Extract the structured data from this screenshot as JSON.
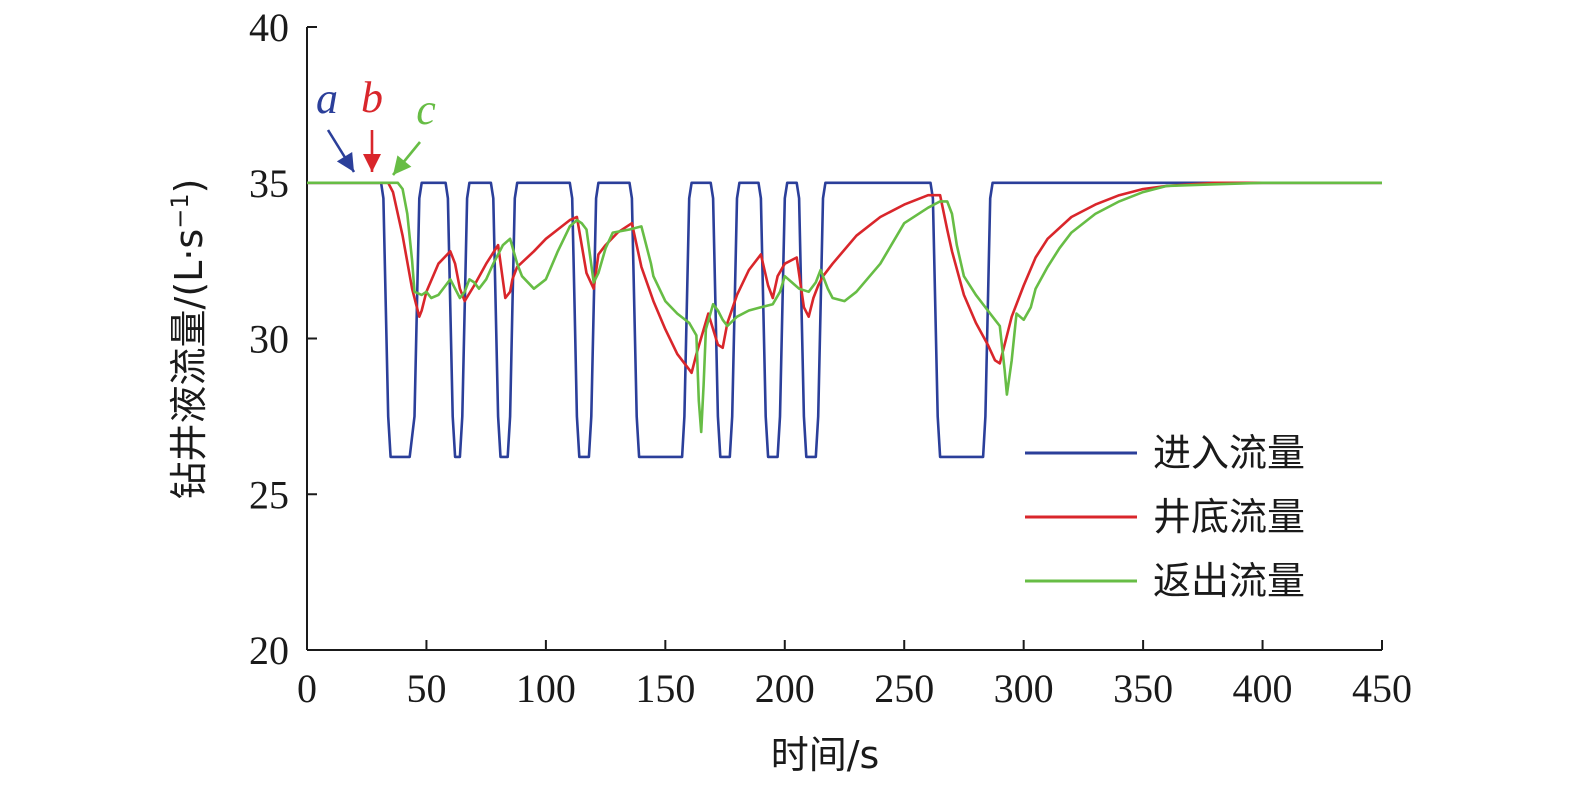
{
  "chart_data": {
    "type": "line",
    "xlabel": "时间/s",
    "ylabel": "钻井液流量/(L·s",
    "ylabel_sup": "−1",
    "ylabel_close": ")",
    "xlim": [
      0,
      450
    ],
    "ylim": [
      20,
      40
    ],
    "xticks": [
      0,
      50,
      100,
      150,
      200,
      250,
      300,
      350,
      400,
      450
    ],
    "yticks": [
      20,
      25,
      30,
      35,
      40
    ],
    "legend_position": "right",
    "series": [
      {
        "name": "进入流量",
        "color": "#2b3f9a",
        "x": [
          0,
          31,
          32,
          33,
          34,
          35,
          43,
          45,
          46,
          47,
          48,
          58,
          59,
          60,
          61,
          62,
          64,
          65,
          66,
          67,
          68,
          77,
          78,
          79,
          80,
          81,
          84,
          85,
          86,
          87,
          88,
          110,
          111,
          112,
          113,
          114,
          118,
          119,
          120,
          121,
          122,
          135,
          136,
          137,
          138,
          139,
          157,
          158,
          159,
          160,
          161,
          169,
          170,
          171,
          172,
          173,
          177,
          178,
          179,
          180,
          181,
          189,
          190,
          191,
          192,
          193,
          197,
          198,
          199,
          200,
          201,
          205,
          206,
          207,
          208,
          209,
          213,
          214,
          215,
          216,
          217,
          261,
          262,
          263,
          264,
          265,
          283,
          284,
          285,
          286,
          287,
          450
        ],
        "y": [
          35,
          35,
          34.5,
          31,
          27.5,
          26.2,
          26.2,
          27.5,
          31,
          34.5,
          35,
          35,
          34.5,
          31,
          27.5,
          26.2,
          26.2,
          27.5,
          31,
          34.5,
          35,
          35,
          34.5,
          31,
          27.5,
          26.2,
          26.2,
          27.5,
          31,
          34.5,
          35,
          35,
          34.5,
          31,
          27.5,
          26.2,
          26.2,
          27.5,
          31,
          34.5,
          35,
          35,
          34.5,
          31,
          27.5,
          26.2,
          26.2,
          27.5,
          31,
          34.5,
          35,
          35,
          34.5,
          31,
          27.5,
          26.2,
          26.2,
          27.5,
          31,
          34.5,
          35,
          35,
          34.5,
          31,
          27.5,
          26.2,
          26.2,
          27.5,
          31,
          34.5,
          35,
          35,
          34.5,
          31,
          27.5,
          26.2,
          26.2,
          27.5,
          31,
          34.5,
          35,
          35,
          34.5,
          31,
          27.5,
          26.2,
          26.2,
          27.5,
          31,
          34.5,
          35,
          35
        ]
      },
      {
        "name": "井底流量",
        "color": "#d9262b",
        "x": [
          0,
          34,
          36,
          40,
          44,
          47,
          48,
          50,
          55,
          60,
          62,
          64,
          66,
          70,
          75,
          80,
          83,
          85,
          86,
          88,
          95,
          100,
          105,
          110,
          113,
          115,
          117,
          120,
          122,
          125,
          130,
          136,
          140,
          145,
          150,
          155,
          160,
          161,
          163,
          168,
          172,
          174,
          176,
          180,
          185,
          190,
          193,
          195,
          197,
          200,
          205,
          208,
          210,
          212,
          214,
          216,
          220,
          230,
          240,
          250,
          260,
          265,
          268,
          270,
          275,
          280,
          285,
          288,
          290,
          292,
          295,
          300,
          305,
          310,
          320,
          330,
          340,
          350,
          360,
          380,
          400,
          420,
          450
        ],
        "y": [
          35,
          35,
          34.7,
          33.3,
          31.6,
          30.7,
          30.9,
          31.5,
          32.4,
          32.8,
          32.4,
          31.6,
          31.2,
          31.7,
          32.4,
          33.0,
          31.3,
          31.5,
          31.9,
          32.3,
          32.8,
          33.2,
          33.5,
          33.8,
          33.9,
          33.0,
          32.1,
          31.6,
          32.7,
          33.0,
          33.4,
          33.7,
          32.3,
          31.2,
          30.3,
          29.5,
          29.0,
          28.9,
          29.5,
          30.8,
          29.8,
          29.7,
          30.5,
          31.4,
          32.2,
          32.7,
          31.7,
          31.3,
          32.0,
          32.4,
          32.6,
          31.0,
          30.7,
          31.3,
          31.7,
          32.0,
          32.4,
          33.3,
          33.9,
          34.3,
          34.6,
          34.6,
          33.5,
          32.8,
          31.4,
          30.5,
          29.8,
          29.3,
          29.2,
          29.8,
          30.7,
          31.7,
          32.6,
          33.2,
          33.9,
          34.3,
          34.6,
          34.8,
          34.9,
          35.0,
          35.0,
          35.0,
          35.0
        ]
      },
      {
        "name": "返出流量",
        "color": "#67bd45",
        "x": [
          0,
          38,
          40,
          42,
          44,
          45,
          48,
          50,
          52,
          55,
          58,
          60,
          62,
          64,
          66,
          68,
          70,
          72,
          75,
          78,
          82,
          85,
          88,
          90,
          95,
          100,
          105,
          110,
          113,
          115,
          117,
          120,
          122,
          125,
          128,
          135,
          140,
          144,
          145,
          150,
          155,
          160,
          163,
          164,
          165,
          166,
          167,
          170,
          172,
          174,
          176,
          180,
          185,
          190,
          195,
          198,
          200,
          203,
          206,
          210,
          213,
          215,
          218,
          220,
          225,
          230,
          240,
          250,
          260,
          265,
          268,
          270,
          272,
          275,
          280,
          285,
          288,
          290,
          292,
          293,
          295,
          297,
          300,
          303,
          305,
          310,
          315,
          320,
          330,
          340,
          350,
          360,
          380,
          400,
          420,
          450
        ],
        "y": [
          35,
          35,
          34.8,
          34.0,
          32.5,
          31.5,
          31.4,
          31.5,
          31.3,
          31.4,
          31.7,
          31.9,
          31.6,
          31.3,
          31.5,
          31.9,
          31.8,
          31.6,
          31.9,
          32.4,
          33.0,
          33.2,
          32.4,
          32.0,
          31.6,
          31.9,
          32.8,
          33.6,
          33.8,
          33.7,
          33.5,
          31.8,
          32.1,
          32.9,
          33.4,
          33.5,
          33.6,
          32.4,
          32.0,
          31.2,
          30.8,
          30.5,
          30.1,
          28.0,
          27.0,
          28.5,
          30.3,
          31.1,
          30.9,
          30.6,
          30.4,
          30.7,
          30.9,
          31.0,
          31.1,
          31.5,
          32.0,
          31.8,
          31.6,
          31.5,
          31.8,
          32.2,
          31.6,
          31.3,
          31.2,
          31.5,
          32.4,
          33.7,
          34.2,
          34.4,
          34.4,
          34.0,
          33.0,
          32.0,
          31.4,
          30.9,
          30.6,
          30.4,
          29.0,
          28.2,
          29.3,
          30.8,
          30.6,
          31.0,
          31.6,
          32.3,
          32.9,
          33.4,
          34.0,
          34.4,
          34.7,
          34.9,
          34.95,
          35.0,
          35.0,
          35.0
        ]
      }
    ],
    "annotations": [
      {
        "text": "a",
        "color": "#2b3f9a",
        "x": 30
      },
      {
        "text": "b",
        "color": "#d9262b",
        "x": 34
      },
      {
        "text": "c",
        "color": "#67bd45",
        "x": 38
      }
    ]
  }
}
